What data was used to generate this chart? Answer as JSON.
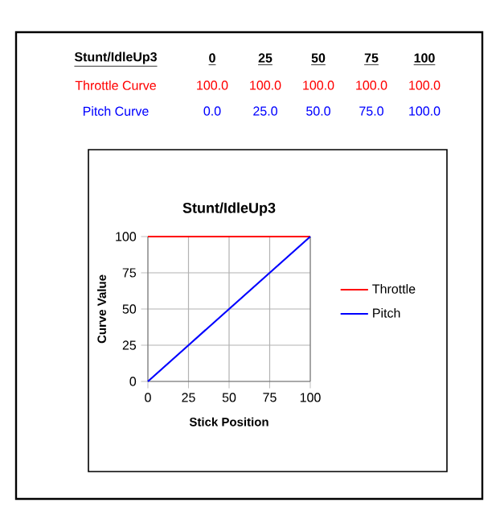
{
  "chart_data": {
    "type": "line",
    "title": "Stunt/IdleUp3",
    "xlabel": "Stick Position",
    "ylabel": "Curve Value",
    "x": [
      0,
      25,
      50,
      75,
      100
    ],
    "series": [
      {
        "name": "Throttle",
        "color": "#ff0000",
        "values": [
          100,
          100,
          100,
          100,
          100
        ]
      },
      {
        "name": "Pitch",
        "color": "#0000ff",
        "values": [
          0,
          25,
          50,
          75,
          100
        ]
      }
    ],
    "annotations": [
      "Stunt/IdleUp3",
      "0",
      "25",
      "50",
      "75",
      "100",
      "Throttle Curve",
      "100.0",
      "100.0",
      "100.0",
      "100.0",
      "100.0",
      "Pitch Curve",
      "0.0",
      "25.0",
      "50.0",
      "75.0",
      "100.0"
    ],
    "xlim": [
      0,
      100
    ],
    "ylim": [
      0,
      100
    ],
    "xticks": [
      0,
      25,
      50,
      75,
      100
    ],
    "yticks": [
      0,
      25,
      50,
      75,
      100
    ],
    "grid": true,
    "legend": "right",
    "marker": "none",
    "line_style": "solid"
  }
}
